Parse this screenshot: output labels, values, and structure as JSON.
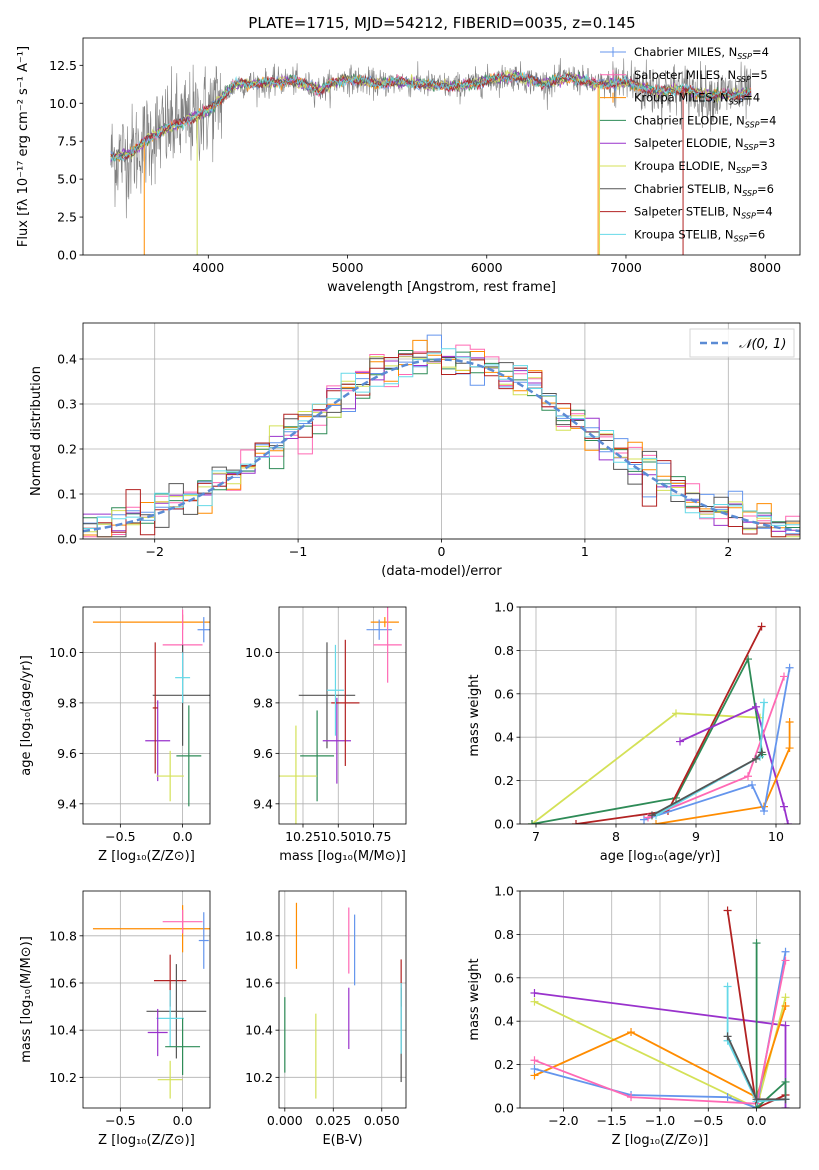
{
  "figure": {
    "title": "PLATE=1715, MJD=54212, FIBERID=0035, z=0.145"
  },
  "chart_data": [
    {
      "id": "spectrum",
      "type": "line",
      "title": "PLATE=1715, MJD=54212, FIBERID=0035, z=0.145",
      "xlabel": "wavelength [Angstrom, rest frame]",
      "ylabel": "Flux [fλ 10⁻¹⁷ erg cm⁻² s⁻¹ A⁻¹]",
      "xlim": [
        3100,
        8250
      ],
      "ylim": [
        0,
        14.3
      ],
      "xticks": [
        4000,
        5000,
        6000,
        7000,
        8000
      ],
      "yticks": [
        0.0,
        2.5,
        5.0,
        7.5,
        10.0,
        12.5
      ],
      "legend_position": "upper-right",
      "legend": [
        {
          "label": "Chabrier MILES, N",
          "sub": "SSP",
          "tail": "=4"
        },
        {
          "label": "Salpeter MILES, N",
          "sub": "SSP",
          "tail": "=5"
        },
        {
          "label": "Kroupa MILES, N",
          "sub": "SSP",
          "tail": "=4"
        },
        {
          "label": "Chabrier ELODIE, N",
          "sub": "SSP",
          "tail": "=4"
        },
        {
          "label": "Salpeter ELODIE, N",
          "sub": "SSP",
          "tail": "=3"
        },
        {
          "label": "Kroupa ELODIE, N",
          "sub": "SSP",
          "tail": "=3"
        },
        {
          "label": "Chabrier STELIB, N",
          "sub": "SSP",
          "tail": "=6"
        },
        {
          "label": "Salpeter STELIB, N",
          "sub": "SSP",
          "tail": "=4"
        },
        {
          "label": "Kroupa STELIB, N",
          "sub": "SSP",
          "tail": "=6"
        }
      ],
      "series_colors": [
        "#6495ed",
        "#ff69b4",
        "#ff8c00",
        "#2e8b57",
        "#9932cc",
        "#d4e157",
        "#555555",
        "#b22222",
        "#66d9e8"
      ],
      "data_color": "#808080",
      "envelope": {
        "x": [
          3300,
          3450,
          3600,
          3700,
          3800,
          3900,
          4000,
          4100,
          4200,
          4400,
          4600,
          4800,
          4900,
          5000,
          5200,
          5400,
          5600,
          5800,
          6000,
          6200,
          6400,
          6600,
          6800,
          7000,
          7200,
          7400,
          7600,
          7800,
          7900
        ],
        "y": [
          6.4,
          6.7,
          7.9,
          8.3,
          8.7,
          9.1,
          9.5,
          10.4,
          11.3,
          11.3,
          11.5,
          10.9,
          11.3,
          11.6,
          11.3,
          11.4,
          11.2,
          11.1,
          11.5,
          11.8,
          11.3,
          11.7,
          11.2,
          11.4,
          10.8,
          10.9,
          10.5,
          10.6,
          10.7
        ]
      },
      "cutoffs": [
        {
          "x": 3540,
          "color": "#ff8c00"
        },
        {
          "x": 3920,
          "color": "#d4e157"
        },
        {
          "x": 6800,
          "color": "#ff8c00"
        },
        {
          "x": 6810,
          "color": "#d4e157"
        },
        {
          "x": 7410,
          "color": "#b22222"
        }
      ]
    },
    {
      "id": "residuals",
      "type": "histogram",
      "xlabel": "(data-model)/error",
      "ylabel": "Normed distribution",
      "xlim": [
        -2.5,
        2.5
      ],
      "ylim": [
        0,
        0.48
      ],
      "xticks": [
        -2,
        -1,
        0,
        1,
        2
      ],
      "yticks": [
        0.0,
        0.1,
        0.2,
        0.3,
        0.4
      ],
      "grid": true,
      "legend_position": "upper-right",
      "legend": [
        "𝒩(0, 1)"
      ],
      "gaussian_color": "#5b8bd4",
      "bin_width": 0.1
    },
    {
      "id": "age-vs-Z",
      "type": "errorbar",
      "xlabel": "Z [log₁₀(Z/Z⊙)]",
      "ylabel": "age  [log₁₀(age/yr)]",
      "xlim": [
        -0.8,
        0.22
      ],
      "ylim": [
        9.32,
        10.18
      ],
      "xticks": [
        -0.5,
        0.0
      ],
      "yticks": [
        9.4,
        9.6,
        9.8,
        10.0
      ],
      "grid": true,
      "points": [
        {
          "color": "#ff8c00",
          "x": 0.0,
          "xerr": 0.72,
          "y": 10.12,
          "yerr": 0.03
        },
        {
          "color": "#6495ed",
          "x": 0.17,
          "xerr": 0.05,
          "y": 10.09,
          "yerr": 0.05
        },
        {
          "color": "#ff69b4",
          "x": 0.0,
          "xerr": 0.16,
          "y": 10.03,
          "yerr": 0.14
        },
        {
          "color": "#555555",
          "x": 0.0,
          "xerr": 0.24,
          "y": 9.83,
          "yerr": 0.2
        },
        {
          "color": "#9932cc",
          "x": -0.2,
          "xerr": 0.1,
          "y": 9.65,
          "yerr": 0.16
        },
        {
          "color": "#2e8b57",
          "x": 0.05,
          "xerr": 0.1,
          "y": 9.59,
          "yerr": 0.2
        },
        {
          "color": "#d4e157",
          "x": -0.1,
          "xerr": 0.11,
          "y": 9.51,
          "yerr": 0.1
        },
        {
          "color": "#b22222",
          "x": -0.22,
          "xerr": 0.02,
          "y": 9.78,
          "yerr": 0.26
        },
        {
          "color": "#66d9e8",
          "x": 0.0,
          "xerr": 0.06,
          "y": 9.9,
          "yerr": 0.1
        }
      ]
    },
    {
      "id": "age-vs-mass",
      "type": "errorbar",
      "xlabel": "mass [log₁₀(M/M⊙)]",
      "ylabel": "",
      "xlim": [
        10.08,
        10.98
      ],
      "ylim": [
        9.32,
        10.18
      ],
      "xticks": [
        10.25,
        10.5,
        10.75
      ],
      "yticks": [
        9.4,
        9.6,
        9.8,
        10.0
      ],
      "grid": true,
      "points": [
        {
          "color": "#ff8c00",
          "x": 10.83,
          "xerr": 0.1,
          "y": 10.12,
          "yerr": 0.02
        },
        {
          "color": "#6495ed",
          "x": 10.79,
          "xerr": 0.09,
          "y": 10.09,
          "yerr": 0.04
        },
        {
          "color": "#ff69b4",
          "x": 10.85,
          "xerr": 0.1,
          "y": 10.03,
          "yerr": 0.15
        },
        {
          "color": "#555555",
          "x": 10.42,
          "xerr": 0.2,
          "y": 9.83,
          "yerr": 0.21
        },
        {
          "color": "#9932cc",
          "x": 10.49,
          "xerr": 0.1,
          "y": 9.65,
          "yerr": 0.17
        },
        {
          "color": "#2e8b57",
          "x": 10.35,
          "xerr": 0.12,
          "y": 9.59,
          "yerr": 0.18
        },
        {
          "color": "#d4e157",
          "x": 10.2,
          "xerr": 0.15,
          "y": 9.51,
          "yerr": 0.2
        },
        {
          "color": "#b22222",
          "x": 10.55,
          "xerr": 0.1,
          "y": 9.8,
          "yerr": 0.25
        },
        {
          "color": "#66d9e8",
          "x": 10.48,
          "xerr": 0.06,
          "y": 9.85,
          "yerr": 0.18
        }
      ]
    },
    {
      "id": "weight-vs-age",
      "type": "line",
      "xlabel": "age  [log₁₀(age/yr)]",
      "ylabel": "mass weight",
      "xlim": [
        6.8,
        10.3
      ],
      "ylim": [
        0,
        1.0
      ],
      "xticks": [
        7,
        8,
        9,
        10
      ],
      "yticks": [
        0.0,
        0.2,
        0.4,
        0.6,
        0.8,
        1.0
      ],
      "grid": true,
      "series": [
        {
          "color": "#d4e157",
          "x": [
            6.95,
            8.75,
            9.8
          ],
          "y": [
            0.0,
            0.51,
            0.49
          ]
        },
        {
          "color": "#2e8b57",
          "x": [
            6.95,
            8.75,
            9.65,
            9.83
          ],
          "y": [
            0.0,
            0.12,
            0.76,
            0.32
          ]
        },
        {
          "color": "#b22222",
          "x": [
            7.5,
            8.65,
            9.82
          ],
          "y": [
            0.0,
            0.06,
            0.91
          ]
        },
        {
          "color": "#9932cc",
          "x": [
            8.8,
            9.75,
            10.1,
            10.15
          ],
          "y": [
            0.38,
            0.54,
            0.08,
            0.0
          ]
        },
        {
          "color": "#ff8c00",
          "x": [
            8.5,
            9.85,
            10.17,
            10.17
          ],
          "y": [
            0.0,
            0.08,
            0.35,
            0.47
          ]
        },
        {
          "color": "#6495ed",
          "x": [
            8.35,
            9.7,
            9.85,
            10.17
          ],
          "y": [
            0.02,
            0.18,
            0.06,
            0.72
          ]
        },
        {
          "color": "#ff69b4",
          "x": [
            8.4,
            9.65,
            10.1
          ],
          "y": [
            0.03,
            0.22,
            0.68
          ]
        },
        {
          "color": "#66d9e8",
          "x": [
            8.5,
            9.8,
            9.85
          ],
          "y": [
            0.04,
            0.31,
            0.56
          ]
        },
        {
          "color": "#555555",
          "x": [
            8.45,
            9.75,
            9.82
          ],
          "y": [
            0.04,
            0.3,
            0.33
          ]
        }
      ]
    },
    {
      "id": "mass-vs-Z",
      "type": "errorbar",
      "xlabel": "Z [log₁₀(Z/Z⊙)]",
      "ylabel": "mass [log₁₀(M/M⊙)]",
      "xlim": [
        -0.8,
        0.22
      ],
      "ylim": [
        10.07,
        10.99
      ],
      "xticks": [
        -0.5,
        0.0
      ],
      "yticks": [
        10.2,
        10.4,
        10.6,
        10.8
      ],
      "grid": true,
      "points": [
        {
          "color": "#ff8c00",
          "x": 0.0,
          "xerr": 0.72,
          "y": 10.83,
          "yerr": 0.1
        },
        {
          "color": "#ff69b4",
          "x": 0.0,
          "xerr": 0.16,
          "y": 10.86,
          "yerr": 0.05
        },
        {
          "color": "#6495ed",
          "x": 0.17,
          "xerr": 0.04,
          "y": 10.78,
          "yerr": 0.12
        },
        {
          "color": "#b22222",
          "x": -0.1,
          "xerr": 0.13,
          "y": 10.61,
          "yerr": 0.11
        },
        {
          "color": "#555555",
          "x": -0.05,
          "xerr": 0.24,
          "y": 10.48,
          "yerr": 0.2
        },
        {
          "color": "#66d9e8",
          "x": -0.1,
          "xerr": 0.11,
          "y": 10.45,
          "yerr": 0.12
        },
        {
          "color": "#9932cc",
          "x": -0.2,
          "xerr": 0.08,
          "y": 10.39,
          "yerr": 0.1
        },
        {
          "color": "#2e8b57",
          "x": 0.0,
          "xerr": 0.14,
          "y": 10.33,
          "yerr": 0.12
        },
        {
          "color": "#d4e157",
          "x": -0.1,
          "xerr": 0.1,
          "y": 10.19,
          "yerr": 0.08
        }
      ]
    },
    {
      "id": "mass-vs-ebv",
      "type": "errorbar",
      "xlabel": "E(B-V)",
      "ylabel": "",
      "xlim": [
        -0.003,
        0.0625
      ],
      "ylim": [
        10.07,
        10.99
      ],
      "xticks": [
        0.0,
        0.025,
        0.05
      ],
      "yticks": [
        10.2,
        10.4,
        10.6,
        10.8
      ],
      "grid": true,
      "points": [
        {
          "color": "#ff8c00",
          "x": 0.006,
          "xerr": 0,
          "y": 10.8,
          "yerr": 0.14
        },
        {
          "color": "#ff69b4",
          "x": 0.033,
          "xerr": 0,
          "y": 10.78,
          "yerr": 0.14
        },
        {
          "color": "#6495ed",
          "x": 0.036,
          "xerr": 0,
          "y": 10.74,
          "yerr": 0.15
        },
        {
          "color": "#9932cc",
          "x": 0.033,
          "xerr": 0,
          "y": 10.45,
          "yerr": 0.13
        },
        {
          "color": "#d4e157",
          "x": 0.016,
          "xerr": 0,
          "y": 10.29,
          "yerr": 0.18
        },
        {
          "color": "#2e8b57",
          "x": 0.0,
          "xerr": 0,
          "y": 10.38,
          "yerr": 0.16
        },
        {
          "color": "#b22222",
          "x": 0.06,
          "xerr": 0,
          "y": 10.6,
          "yerr": 0.1
        },
        {
          "color": "#555555",
          "x": 0.06,
          "xerr": 0,
          "y": 10.38,
          "yerr": 0.2
        },
        {
          "color": "#66d9e8",
          "x": 0.06,
          "xerr": 0,
          "y": 10.45,
          "yerr": 0.15
        }
      ]
    },
    {
      "id": "weight-vs-Z",
      "type": "line",
      "xlabel": "Z [log₁₀(Z/Z⊙)]",
      "ylabel": "mass weight",
      "xlim": [
        -2.45,
        0.45
      ],
      "ylim": [
        0,
        1.0
      ],
      "xticks": [
        -2.0,
        -1.5,
        -1.0,
        -0.5,
        0.0
      ],
      "yticks": [
        0.0,
        0.2,
        0.4,
        0.6,
        0.8,
        1.0
      ],
      "grid": true,
      "series": [
        {
          "color": "#9932cc",
          "x": [
            -2.3,
            0.3,
            0.3
          ],
          "y": [
            0.53,
            0.38,
            0.0
          ]
        },
        {
          "color": "#d4e157",
          "x": [
            -2.3,
            0.0,
            0.3
          ],
          "y": [
            0.49,
            0.0,
            0.51
          ]
        },
        {
          "color": "#ff8c00",
          "x": [
            -2.3,
            -1.3,
            0.0,
            0.3
          ],
          "y": [
            0.15,
            0.35,
            0.05,
            0.47
          ]
        },
        {
          "color": "#6495ed",
          "x": [
            -2.3,
            -1.3,
            -0.3,
            0.0,
            0.3
          ],
          "y": [
            0.18,
            0.06,
            0.05,
            0.0,
            0.72
          ]
        },
        {
          "color": "#ff69b4",
          "x": [
            -2.3,
            -1.3,
            0.0,
            0.3
          ],
          "y": [
            0.22,
            0.05,
            0.02,
            0.68
          ]
        },
        {
          "color": "#b22222",
          "x": [
            -0.3,
            0.0,
            0.3
          ],
          "y": [
            0.91,
            0.0,
            0.06
          ]
        },
        {
          "color": "#2e8b57",
          "x": [
            0.0,
            0.0,
            0.3,
            0.3
          ],
          "y": [
            0.76,
            0.0,
            0.12,
            0.04
          ]
        },
        {
          "color": "#66d9e8",
          "x": [
            -0.3,
            -0.3,
            0.0,
            0.3
          ],
          "y": [
            0.56,
            0.31,
            0.03,
            0.04
          ]
        },
        {
          "color": "#555555",
          "x": [
            -0.3,
            0.0,
            0.3
          ],
          "y": [
            0.33,
            0.04,
            0.04
          ]
        }
      ]
    }
  ]
}
